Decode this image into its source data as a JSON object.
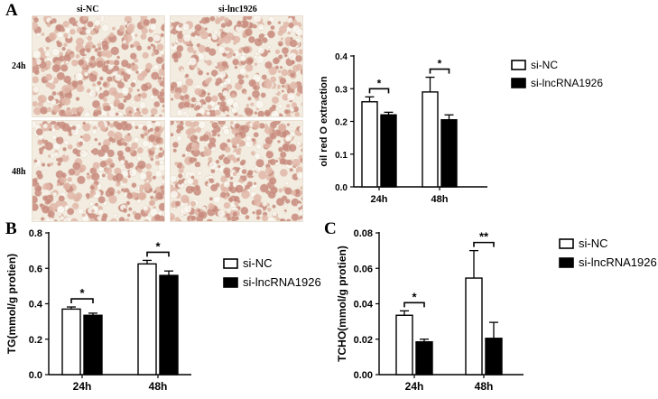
{
  "panel_labels": {
    "A": "A",
    "B": "B",
    "C": "C"
  },
  "panel_a_images": {
    "columns": [
      "si-NC",
      "si-lnc1926"
    ],
    "rows": [
      "24h",
      "48h"
    ]
  },
  "colors": {
    "si_nc": "#ffffff",
    "si_lnc": "#000000",
    "stain": "#c98a7e",
    "cell_bg": "#f3ece0"
  },
  "chart_data": [
    {
      "id": "A",
      "type": "bar",
      "categories": [
        "24h",
        "48h"
      ],
      "series": [
        {
          "name": "si-NC",
          "values": [
            0.26,
            0.29
          ],
          "errors": [
            0.015,
            0.045
          ],
          "color": "#ffffff"
        },
        {
          "name": "si-lncRNA1926",
          "values": [
            0.22,
            0.205
          ],
          "errors": [
            0.008,
            0.015
          ],
          "color": "#000000"
        }
      ],
      "ylabel": "oil red O extraction",
      "ylim": [
        0,
        0.4
      ],
      "yticks": [
        0.0,
        0.1,
        0.2,
        0.3,
        0.4
      ],
      "ytick_labels": [
        "0.0",
        "0.1",
        "0.2",
        "0.3",
        "0.4"
      ],
      "significance": [
        "*",
        "*"
      ],
      "legend": "right"
    },
    {
      "id": "B",
      "type": "bar",
      "categories": [
        "24h",
        "48h"
      ],
      "series": [
        {
          "name": "si-NC",
          "values": [
            0.37,
            0.625
          ],
          "errors": [
            0.012,
            0.02
          ],
          "color": "#ffffff"
        },
        {
          "name": "si-lncRNA1926",
          "values": [
            0.335,
            0.56
          ],
          "errors": [
            0.012,
            0.025
          ],
          "color": "#000000"
        }
      ],
      "ylabel": "TG(mmol/g protien)",
      "ylim": [
        0,
        0.8
      ],
      "yticks": [
        0.0,
        0.2,
        0.4,
        0.6,
        0.8
      ],
      "ytick_labels": [
        "0.0",
        "0.2",
        "0.4",
        "0.6",
        "0.8"
      ],
      "significance": [
        "*",
        "*"
      ],
      "legend": "right"
    },
    {
      "id": "C",
      "type": "bar",
      "categories": [
        "24h",
        "48h"
      ],
      "series": [
        {
          "name": "si-NC",
          "values": [
            0.0335,
            0.0545
          ],
          "errors": [
            0.0025,
            0.0155
          ],
          "color": "#ffffff"
        },
        {
          "name": "si-lncRNA1926",
          "values": [
            0.0185,
            0.0205
          ],
          "errors": [
            0.0015,
            0.009
          ],
          "color": "#000000"
        }
      ],
      "ylabel": "TCHO(mmol/g protien)",
      "ylim": [
        0,
        0.08
      ],
      "yticks": [
        0.0,
        0.02,
        0.04,
        0.06,
        0.08
      ],
      "ytick_labels": [
        "0.00",
        "0.02",
        "0.04",
        "0.06",
        "0.08"
      ],
      "significance": [
        "*",
        "**"
      ],
      "legend": "right"
    }
  ]
}
